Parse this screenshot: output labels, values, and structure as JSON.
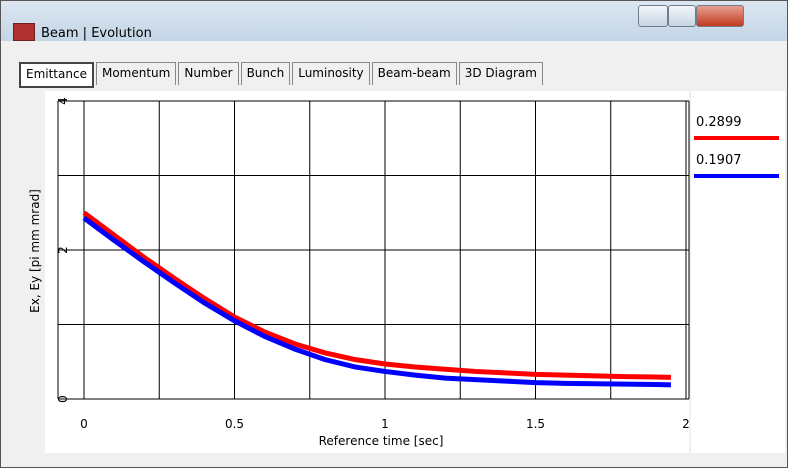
{
  "window": {
    "title": "Beam | Evolution"
  },
  "tabs": [
    "Emittance",
    "Momentum",
    "Number",
    "Bunch",
    "Luminosity",
    "Beam-beam",
    "3D Diagram"
  ],
  "chart_data": {
    "type": "line",
    "xlabel": "Reference time [sec]",
    "ylabel": "Ex, Ey [pi mm mrad]",
    "x": [
      0,
      0.1,
      0.2,
      0.3,
      0.4,
      0.5,
      0.6,
      0.7,
      0.8,
      0.9,
      1.0,
      1.1,
      1.2,
      1.3,
      1.4,
      1.5,
      1.6,
      1.7,
      1.8,
      1.9,
      1.95
    ],
    "series": [
      {
        "name": "0.2899",
        "color": "#ff0000",
        "values": [
          2.5,
          2.2,
          1.9,
          1.62,
          1.35,
          1.1,
          0.9,
          0.74,
          0.62,
          0.53,
          0.47,
          0.43,
          0.4,
          0.37,
          0.35,
          0.33,
          0.32,
          0.31,
          0.3,
          0.295,
          0.29
        ]
      },
      {
        "name": "0.1907",
        "color": "#0000ff",
        "values": [
          2.43,
          2.13,
          1.84,
          1.56,
          1.29,
          1.05,
          0.84,
          0.67,
          0.53,
          0.43,
          0.37,
          0.32,
          0.28,
          0.26,
          0.24,
          0.22,
          0.21,
          0.205,
          0.2,
          0.195,
          0.19
        ]
      }
    ],
    "xlim": [
      0,
      2
    ],
    "xticks": [
      0,
      0.5,
      1,
      1.5,
      2
    ],
    "xgrid": [
      0.25,
      0.75,
      1.25,
      1.75
    ],
    "ylim": [
      0,
      4
    ],
    "yticks": [
      0,
      2,
      4
    ],
    "ygrid": [
      1,
      3
    ],
    "grid": true
  }
}
